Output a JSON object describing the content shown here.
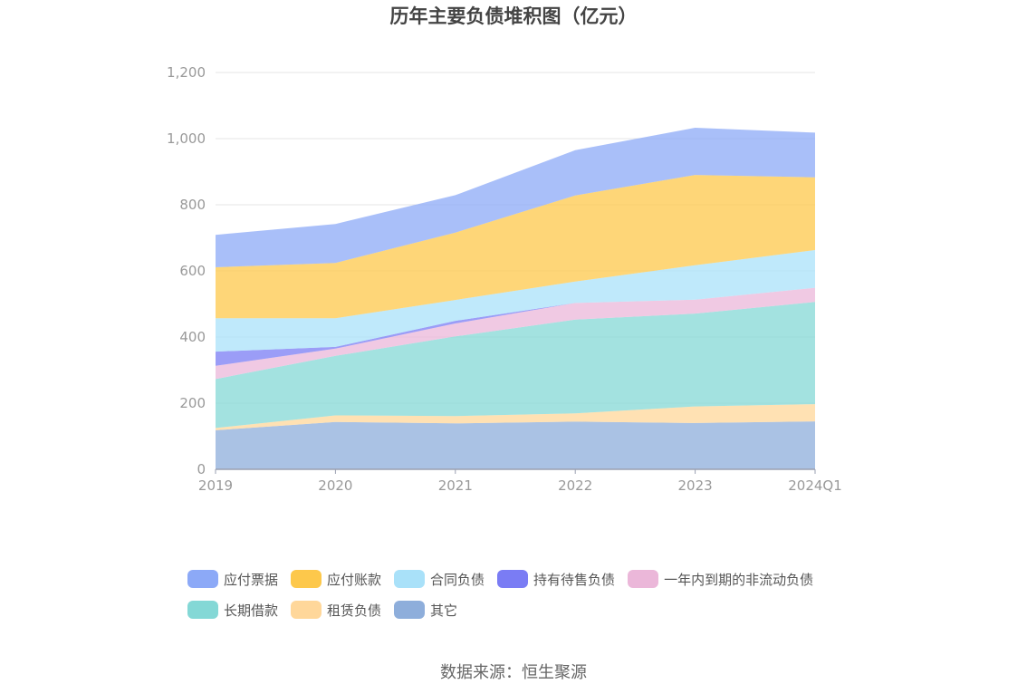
{
  "title": "历年主要负债堆积图（亿元）",
  "source": "数据来源：恒生聚源",
  "chart_data": {
    "type": "area",
    "stacked": true,
    "title": "历年主要负债堆积图（亿元）",
    "x": [
      "2019",
      "2020",
      "2021",
      "2022",
      "2023",
      "2024Q1"
    ],
    "ylim": [
      0,
      1200
    ],
    "yticks": [
      0,
      200,
      400,
      600,
      800,
      1000,
      1200
    ],
    "ytick_labels": [
      "0",
      "200",
      "400",
      "600",
      "800",
      "1,000",
      "1,200"
    ],
    "grid": true,
    "legend_position": "bottom",
    "series": [
      {
        "name": "其它",
        "color": "#8eaedb",
        "values": [
          118,
          143,
          139,
          144,
          140,
          145
        ]
      },
      {
        "name": "租赁负债",
        "color": "#ffd79a",
        "values": [
          7,
          20,
          22,
          25,
          50,
          52
        ]
      },
      {
        "name": "长期借款",
        "color": "#84d8d6",
        "values": [
          148,
          180,
          241,
          284,
          281,
          309
        ]
      },
      {
        "name": "一年内到期的非流动负债",
        "color": "#ebb7d9",
        "values": [
          40,
          22,
          39,
          50,
          42,
          43
        ]
      },
      {
        "name": "持有待售负债",
        "color": "#7a7cf4",
        "values": [
          43,
          5,
          8,
          0,
          0,
          0
        ]
      },
      {
        "name": "合同负债",
        "color": "#a9e1f9",
        "values": [
          101,
          87,
          63,
          65,
          104,
          114
        ]
      },
      {
        "name": "应付账款",
        "color": "#fdc84b",
        "values": [
          154,
          167,
          204,
          260,
          273,
          220
        ]
      },
      {
        "name": "应付票据",
        "color": "#8ca9f7",
        "values": [
          98,
          118,
          113,
          137,
          143,
          135
        ]
      }
    ],
    "legend_order": [
      "应付票据",
      "应付账款",
      "合同负债",
      "持有待售负债",
      "一年内到期的非流动负债",
      "长期借款",
      "租赁负债",
      "其它"
    ]
  }
}
